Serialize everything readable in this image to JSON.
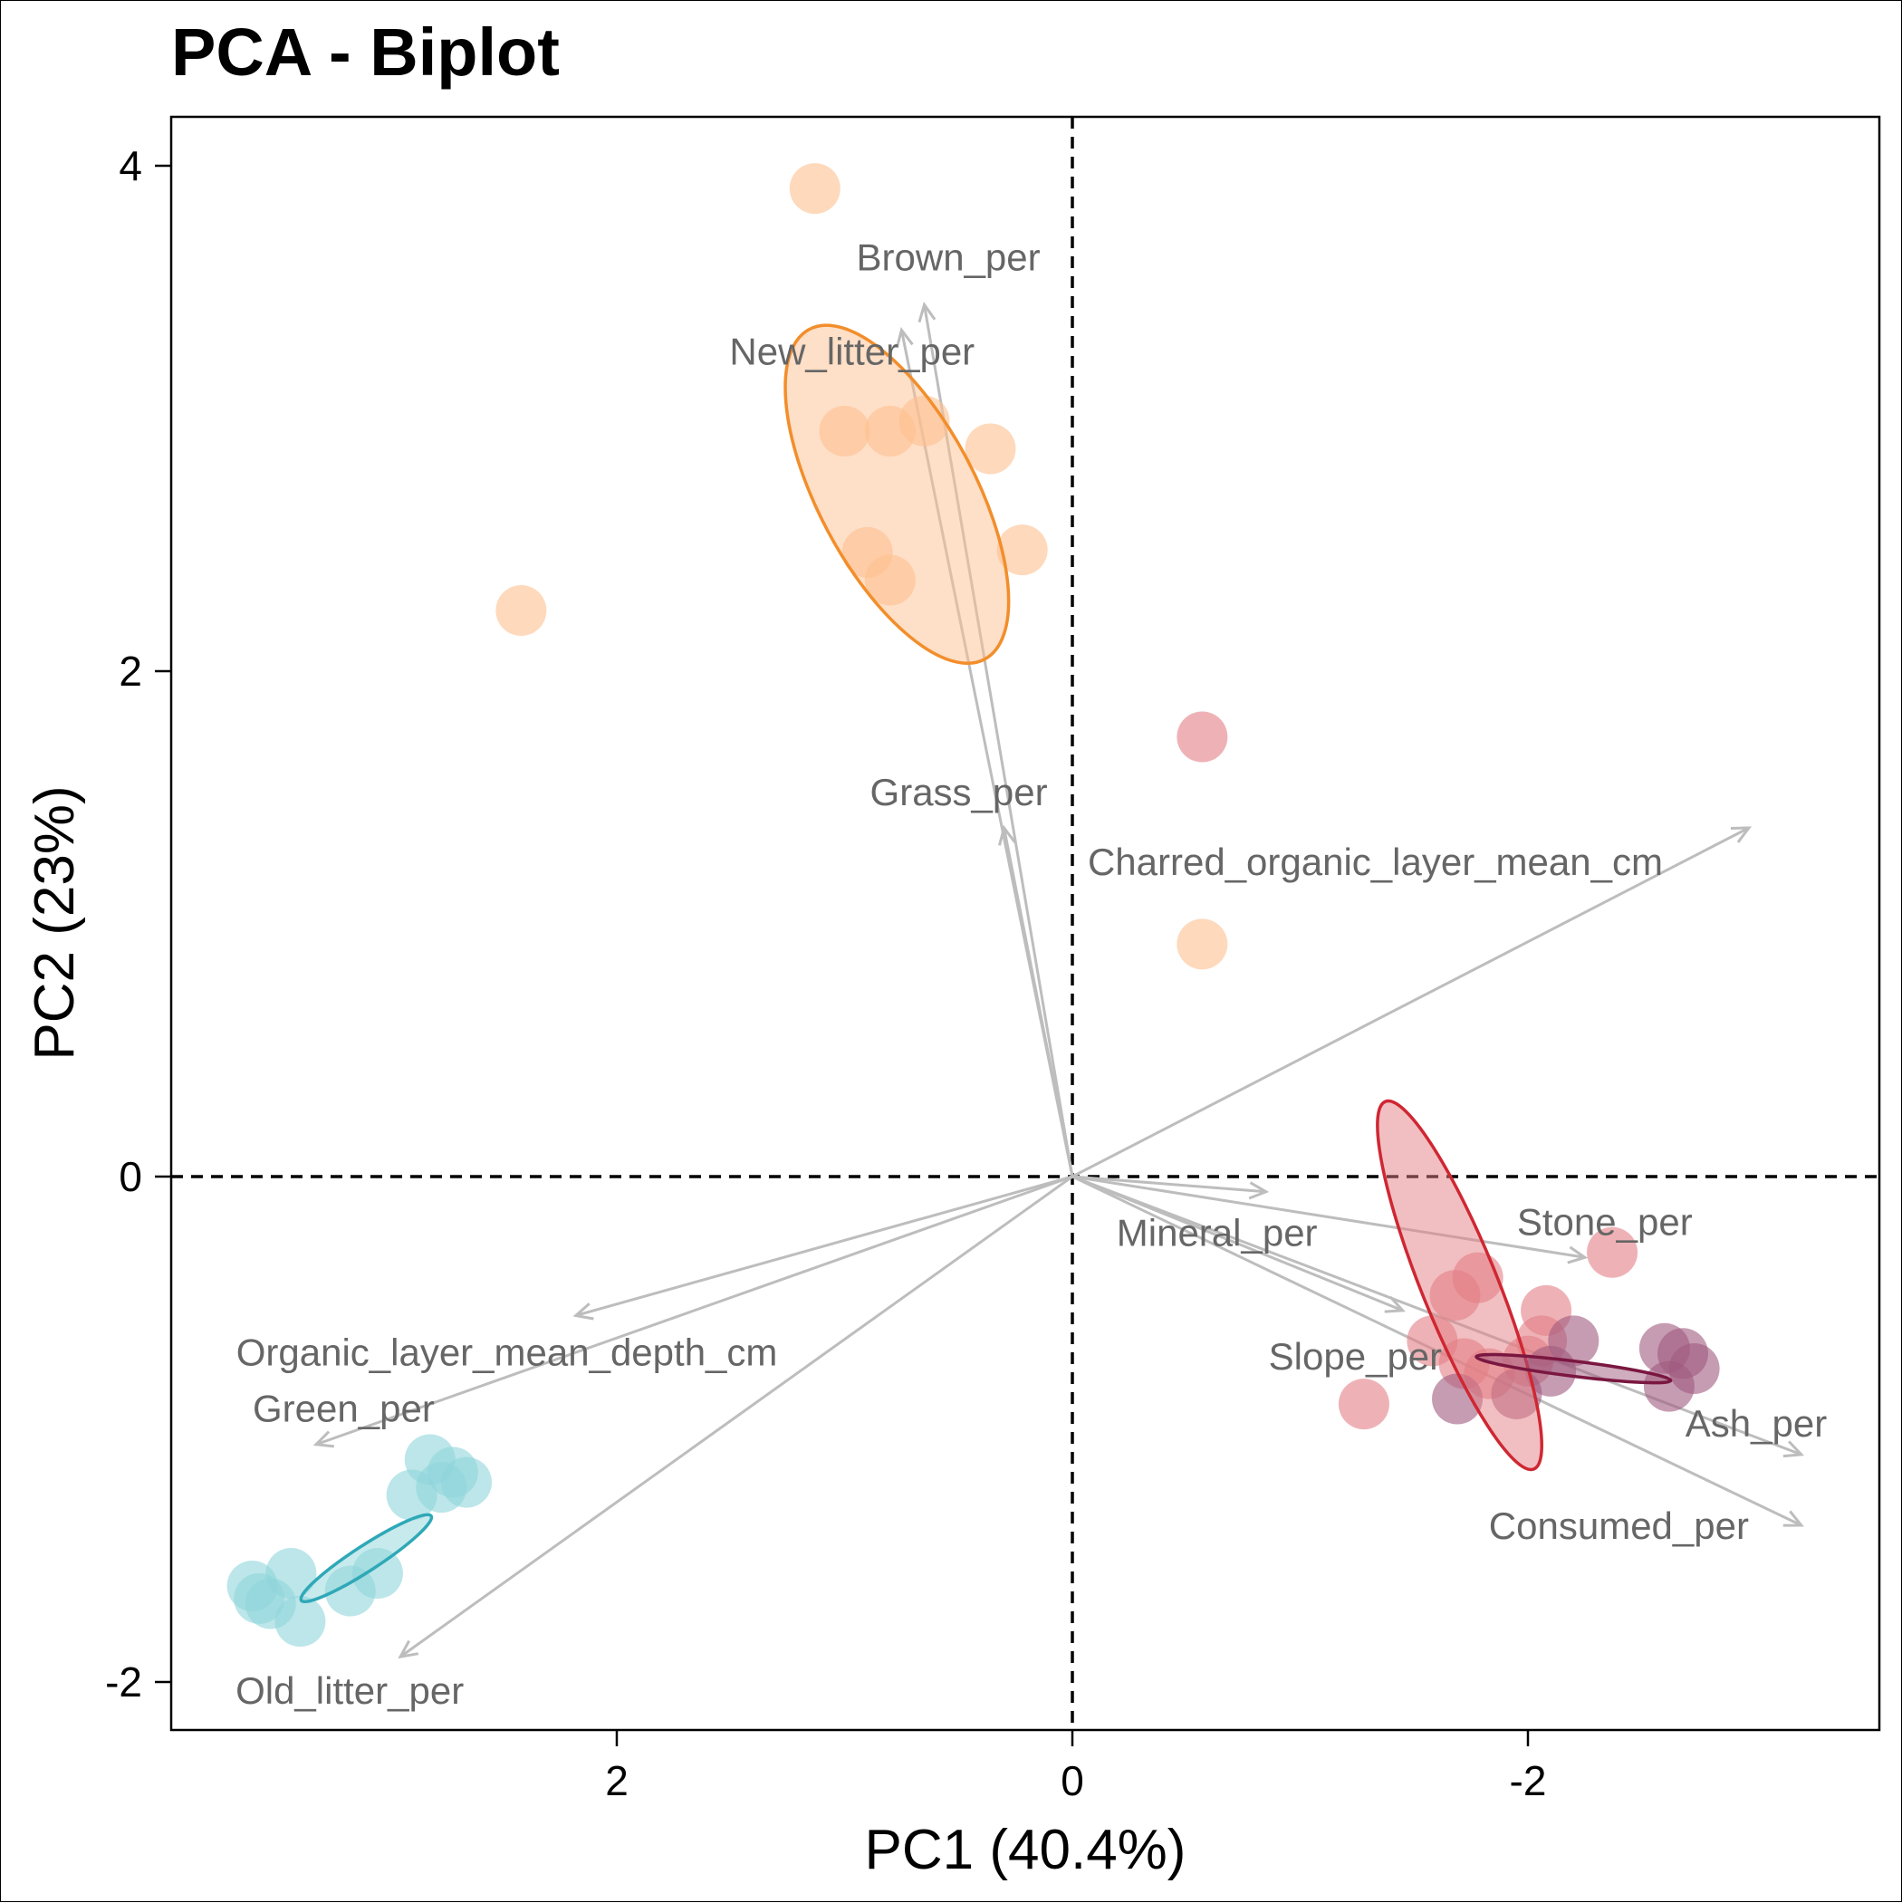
{
  "chart_data": {
    "type": "scatter",
    "title": "PCA - Biplot",
    "xlabel": "PC1 (40.4%)",
    "ylabel": "PC2 (23%)",
    "xlim": [
      3.0,
      -3.55
    ],
    "ylim": [
      -2.2,
      4.2
    ],
    "x_reversed": true,
    "x_ticks": [
      2,
      0,
      -2
    ],
    "y_ticks": [
      4,
      2,
      0,
      -2
    ],
    "reference_lines": {
      "x": 0,
      "y": 0,
      "style": "dashed"
    },
    "grid": false,
    "groups": [
      {
        "color": "#F28E2B",
        "fill": "#FDBF90",
        "points": [
          [
            1.13,
            3.91
          ],
          [
            2.42,
            2.24
          ],
          [
            1.0,
            2.95
          ],
          [
            0.8,
            2.95
          ],
          [
            0.65,
            2.99
          ],
          [
            0.36,
            2.88
          ],
          [
            0.22,
            2.48
          ],
          [
            0.9,
            2.47
          ],
          [
            0.8,
            2.36
          ],
          [
            -0.57,
            0.92
          ]
        ],
        "ellipse": {
          "cx": 0.77,
          "cy": 2.7,
          "rx": 0.82,
          "ry": 0.31,
          "angle_deg": 62
        }
      },
      {
        "color": "#CF2732",
        "fill": "#E37F86",
        "points": [
          [
            -0.57,
            1.74
          ],
          [
            -2.37,
            -0.3
          ],
          [
            -1.78,
            -0.4
          ],
          [
            -1.68,
            -0.47
          ],
          [
            -2.08,
            -0.53
          ],
          [
            -1.58,
            -0.65
          ],
          [
            -2.0,
            -0.73
          ],
          [
            -1.72,
            -0.74
          ],
          [
            -1.83,
            -0.78
          ],
          [
            -2.06,
            -0.65
          ],
          [
            -1.28,
            -0.9
          ]
        ],
        "ellipse": {
          "cx": -1.7,
          "cy": -0.43,
          "rx": 0.87,
          "ry": 0.15,
          "angle_deg": 68
        }
      },
      {
        "color": "#7A1740",
        "fill": "#A05A7E",
        "points": [
          [
            -2.2,
            -0.65
          ],
          [
            -2.6,
            -0.68
          ],
          [
            -2.68,
            -0.7
          ],
          [
            -2.73,
            -0.76
          ],
          [
            -2.62,
            -0.83
          ],
          [
            -2.1,
            -0.77
          ],
          [
            -1.69,
            -0.88
          ],
          [
            -1.95,
            -0.86
          ]
        ],
        "ellipse": {
          "cx": -2.2,
          "cy": -0.76,
          "rx": 0.43,
          "ry": 0.03,
          "angle_deg": 7
        }
      },
      {
        "color": "#2FA8B7",
        "fill": "#8FD5DB",
        "points": [
          [
            2.82,
            -1.12
          ],
          [
            2.72,
            -1.17
          ],
          [
            2.66,
            -1.21
          ],
          [
            2.77,
            -1.23
          ],
          [
            2.9,
            -1.26
          ],
          [
            3.05,
            -1.57
          ],
          [
            3.17,
            -1.64
          ],
          [
            3.43,
            -1.57
          ],
          [
            3.6,
            -1.62
          ],
          [
            3.57,
            -1.67
          ],
          [
            3.52,
            -1.69
          ],
          [
            3.39,
            -1.76
          ]
        ],
        "ellipse": {
          "cx": 3.1,
          "cy": -1.51,
          "rx": 0.34,
          "ry": 0.05,
          "angle_deg": -33
        }
      }
    ],
    "variables": [
      {
        "name": "Brown_per",
        "x": 0.65,
        "y": 3.45
      },
      {
        "name": "New_litter_per",
        "x": 0.75,
        "y": 3.35
      },
      {
        "name": "Grass_per",
        "x": 0.3,
        "y": 1.38
      },
      {
        "name": "Charred_organic_layer_mean_cm",
        "x": -2.97,
        "y": 1.38
      },
      {
        "name": "Mineral_per",
        "x": -0.85,
        "y": -0.06
      },
      {
        "name": "Stone_per",
        "x": -2.25,
        "y": -0.32
      },
      {
        "name": "Slope_per",
        "x": -1.45,
        "y": -0.53
      },
      {
        "name": "Ash_per",
        "x": -3.2,
        "y": -1.1
      },
      {
        "name": "Consumed_per",
        "x": -3.2,
        "y": -1.38
      },
      {
        "name": "Organic_layer_mean_depth_cm",
        "x": 2.18,
        "y": -0.55
      },
      {
        "name": "Green_per",
        "x": 3.32,
        "y": -1.06
      },
      {
        "name": "Old_litter_per",
        "x": 2.95,
        "y": -1.9
      }
    ]
  }
}
